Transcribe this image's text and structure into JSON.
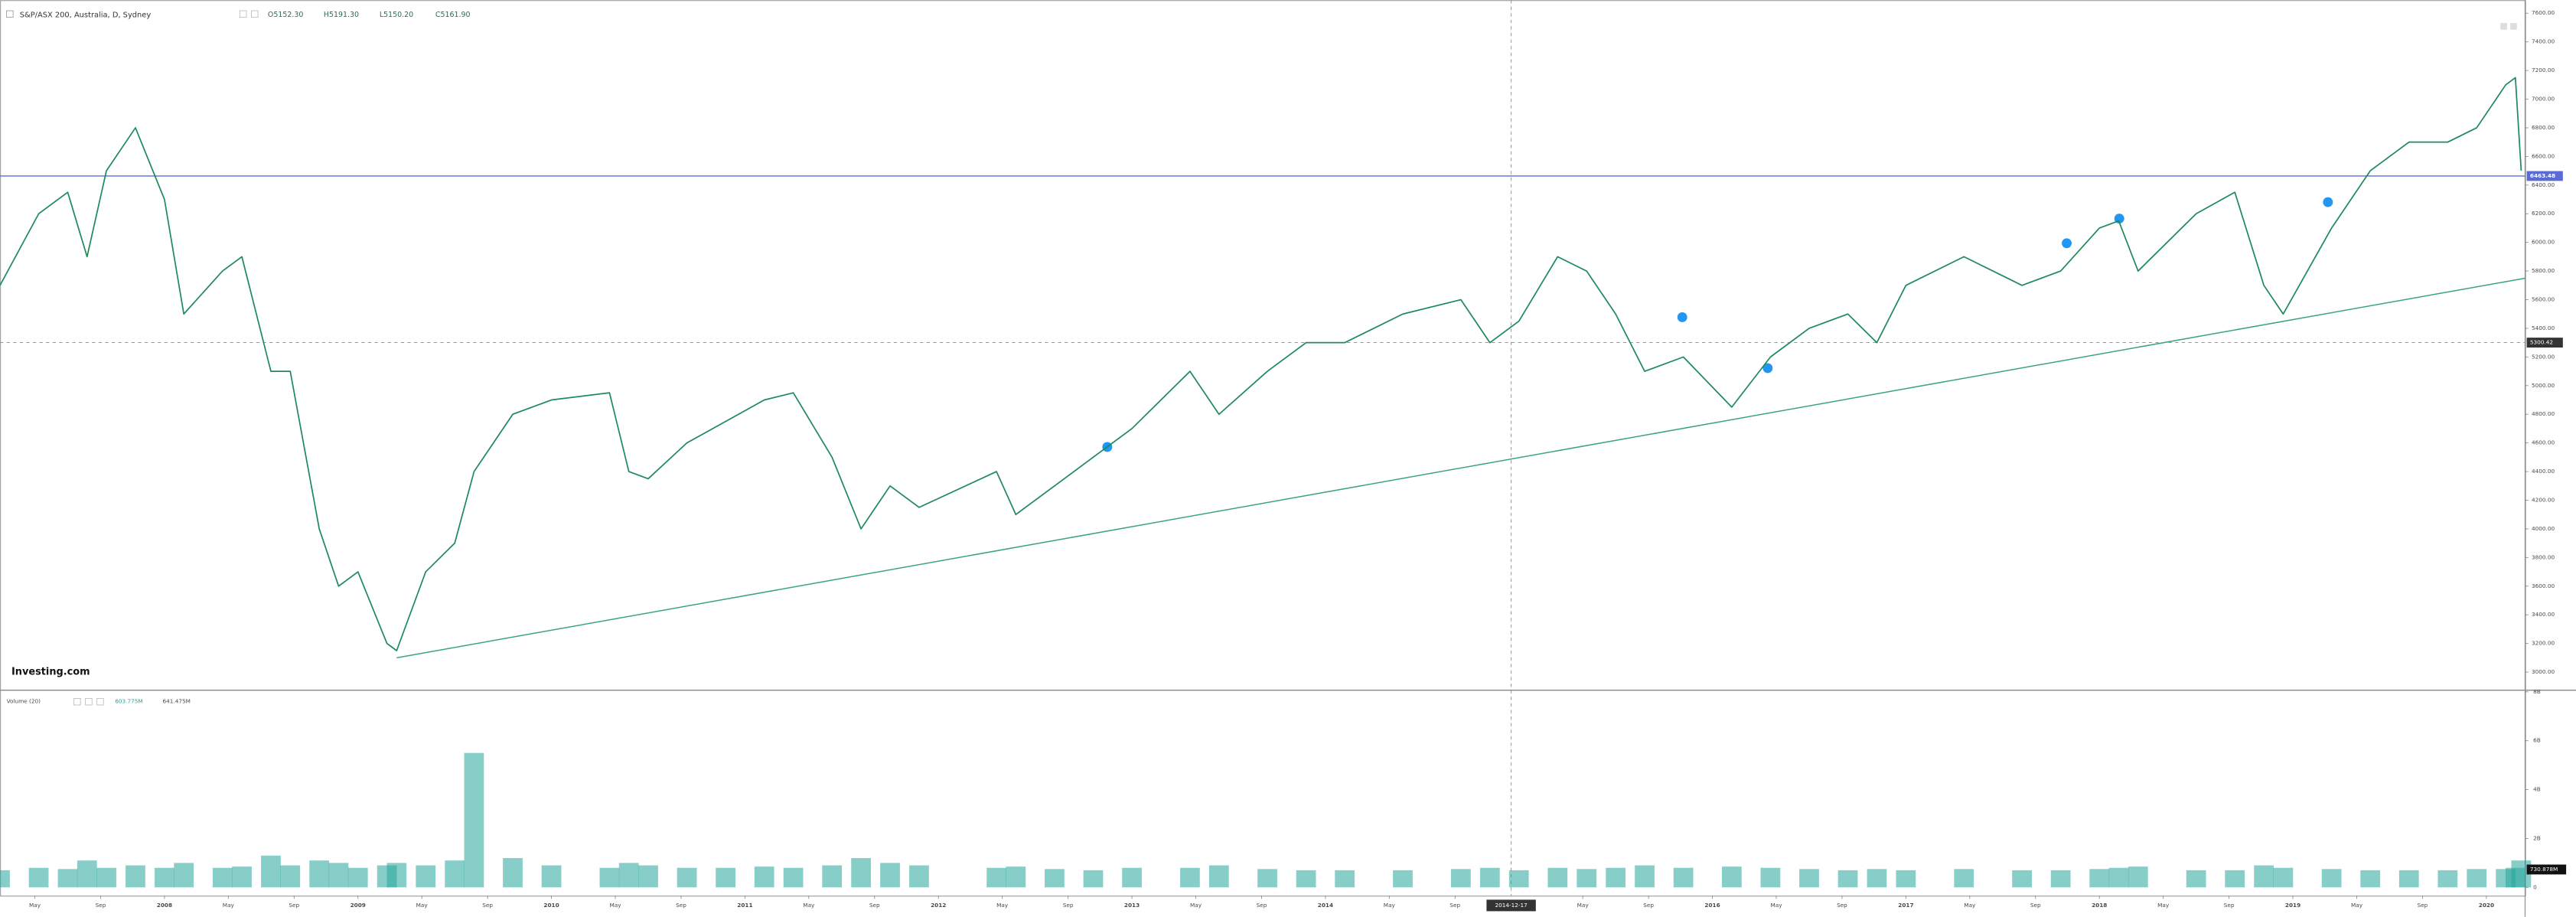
{
  "header": {
    "symbol": "S&P/ASX 200, Australia, D, Sydney",
    "open": "O5152.30",
    "high": "H5191.30",
    "low": "L5150.20",
    "close": "C5161.90"
  },
  "logo": "Investing.com",
  "volume_header": {
    "title": "Volume (20)",
    "value": "603.775M",
    "ma": "641.475M"
  },
  "chart_data": [
    {
      "type": "line",
      "color": "#1f8a5c",
      "x": [
        2007.15,
        2007.35,
        2007.5,
        2007.6,
        2007.7,
        2007.85,
        2008.0,
        2008.1,
        2008.3,
        2008.4,
        2008.55,
        2008.65,
        2008.8,
        2008.9,
        2009.0,
        2009.15,
        2009.2,
        2009.35,
        2009.5,
        2009.6,
        2009.8,
        2010.0,
        2010.3,
        2010.4,
        2010.5,
        2010.7,
        2010.9,
        2011.1,
        2011.25,
        2011.45,
        2011.6,
        2011.75,
        2011.9,
        2012.3,
        2012.4,
        2012.6,
        2012.8,
        2013.0,
        2013.3,
        2013.45,
        2013.7,
        2013.9,
        2014.1,
        2014.4,
        2014.7,
        2014.85,
        2015.0,
        2015.2,
        2015.35,
        2015.5,
        2015.65,
        2015.85,
        2016.1,
        2016.3,
        2016.5,
        2016.7,
        2016.85,
        2017.0,
        2017.3,
        2017.6,
        2017.8,
        2018.0,
        2018.1,
        2018.2,
        2018.5,
        2018.7,
        2018.85,
        2018.95,
        2019.2,
        2019.4,
        2019.6,
        2019.8,
        2019.95,
        2020.1,
        2020.15,
        2020.18
      ],
      "values": [
        5700,
        6200,
        6350,
        5900,
        6500,
        6800,
        6300,
        5500,
        5800,
        5900,
        5100,
        5100,
        4000,
        3600,
        3700,
        3200,
        3150,
        3700,
        3900,
        4400,
        4800,
        4900,
        4950,
        4400,
        4350,
        4600,
        4750,
        4900,
        4950,
        4500,
        4000,
        4300,
        4150,
        4400,
        4100,
        4300,
        4500,
        4700,
        5100,
        4800,
        5100,
        5300,
        5300,
        5500,
        5600,
        5300,
        5450,
        5900,
        5800,
        5500,
        5100,
        5200,
        4850,
        5200,
        5400,
        5500,
        5300,
        5700,
        5900,
        5700,
        5800,
        6100,
        6150,
        5800,
        6200,
        6350,
        5700,
        5500,
        6100,
        6500,
        6700,
        6700,
        6800,
        7100,
        7150,
        6500
      ],
      "xlim": [
        2007.15,
        2020.2
      ],
      "ylim": [
        3000,
        7600
      ],
      "yticks": [
        {
          "value": 3000,
          "label": "3000.00"
        },
        {
          "value": 3200,
          "label": "3200.00"
        },
        {
          "value": 3400,
          "label": "3400.00"
        },
        {
          "value": 3600,
          "label": "3600.00"
        },
        {
          "value": 3800,
          "label": "3800.00"
        },
        {
          "value": 4000,
          "label": "4000.00"
        },
        {
          "value": 4200,
          "label": "4200.00"
        },
        {
          "value": 4400,
          "label": "4400.00"
        },
        {
          "value": 4600,
          "label": "4600.00"
        },
        {
          "value": 4800,
          "label": "4800.00"
        },
        {
          "value": 5000,
          "label": "5000.00"
        },
        {
          "value": 5200,
          "label": "5200.00"
        },
        {
          "value": 5400,
          "label": "5400.00"
        },
        {
          "value": 5600,
          "label": "5600.00"
        },
        {
          "value": 5800,
          "label": "5800.00"
        },
        {
          "value": 6000,
          "label": "6000.00"
        },
        {
          "value": 6200,
          "label": "6200.00"
        },
        {
          "value": 6400,
          "label": "6400.00"
        },
        {
          "value": 6600,
          "label": "6600.00"
        },
        {
          "value": 6800,
          "label": "6800.00"
        },
        {
          "value": 7000,
          "label": "7000.00"
        },
        {
          "value": 7200,
          "label": "7200.00"
        },
        {
          "value": 7400,
          "label": "7400.00"
        },
        {
          "value": 7600,
          "label": "7600.00"
        }
      ],
      "xticks": [
        {
          "value": 2007.33,
          "label": "May"
        },
        {
          "value": 2007.67,
          "label": "Sep"
        },
        2008,
        {
          "value": 2008.33,
          "label": "May"
        },
        {
          "value": 2008.67,
          "label": "Sep"
        },
        2009,
        {
          "value": 2009.33,
          "label": "May"
        },
        {
          "value": 2009.67,
          "label": "Sep"
        },
        2010,
        {
          "value": 2010.33,
          "label": "May"
        },
        {
          "value": 2010.67,
          "label": "Sep"
        },
        2011,
        {
          "value": 2011.33,
          "label": "May"
        },
        {
          "value": 2011.67,
          "label": "Sep"
        },
        2012,
        {
          "value": 2012.33,
          "label": "May"
        },
        {
          "value": 2012.67,
          "label": "Sep"
        },
        2013,
        {
          "value": 2013.33,
          "label": "May"
        },
        {
          "value": 2013.67,
          "label": "Sep"
        },
        2014,
        {
          "value": 2014.33,
          "label": "May"
        },
        {
          "value": 2014.67,
          "label": "Sep"
        },
        {
          "value": 2015.33,
          "label": "May"
        },
        {
          "value": 2015.67,
          "label": "Sep"
        },
        2016,
        {
          "value": 2016.33,
          "label": "May"
        },
        {
          "value": 2016.67,
          "label": "Sep"
        },
        2017,
        {
          "value": 2017.33,
          "label": "May"
        },
        {
          "value": 2017.67,
          "label": "Sep"
        },
        2018,
        {
          "value": 2018.33,
          "label": "May"
        },
        {
          "value": 2018.67,
          "label": "Sep"
        },
        2019,
        {
          "value": 2019.33,
          "label": "May"
        },
        {
          "value": 2019.67,
          "label": "Sep"
        },
        2020
      ],
      "hline": {
        "value": 6463.48,
        "label": "6463.48",
        "color": "#5b6bd6"
      },
      "crosshair": {
        "y": {
          "value": 5300.42,
          "label": "5300.42"
        },
        "x": {
          "value": 2014.96,
          "label": "2014-12-17"
        }
      },
      "trendline": {
        "x": [
          2009.2,
          2020.2
        ],
        "values": [
          3100,
          5750
        ],
        "color": "#3aa57a"
      }
    },
    {
      "type": "bar",
      "color": "#26a69a",
      "values": [
        700000000.0,
        800000000.0,
        750000000.0,
        1100000000.0,
        800000000.0,
        900000000.0,
        800000000.0,
        1000000000.0,
        800000000.0,
        850000000.0,
        1300000000.0,
        900000000.0,
        1100000000.0,
        1000000000.0,
        800000000.0,
        900000000.0,
        1000000000.0,
        900000000.0,
        1100000000.0,
        5500000000.0,
        1200000000.0,
        900000000.0,
        800000000.0,
        1000000000.0,
        900000000.0,
        800000000.0,
        800000000.0,
        850000000.0,
        800000000.0,
        900000000.0,
        1200000000.0,
        1000000000.0,
        900000000.0,
        800000000.0,
        850000000.0,
        750000000.0,
        700000000.0,
        800000000.0,
        800000000.0,
        900000000.0,
        750000000.0,
        700000000.0,
        700000000.0,
        700000000.0,
        750000000.0,
        800000000.0,
        700000000.0,
        800000000.0,
        750000000.0,
        800000000.0,
        900000000.0,
        800000000.0,
        850000000.0,
        800000000.0,
        750000000.0,
        700000000.0,
        750000000.0,
        700000000.0,
        750000000.0,
        700000000.0,
        700000000.0,
        750000000.0,
        800000000.0,
        850000000.0,
        700000000.0,
        700000000.0,
        900000000.0,
        800000000.0,
        750000000.0,
        700000000.0,
        700000000.0,
        700000000.0,
        750000000.0,
        750000000.0,
        800000000.0,
        1100000000.0
      ],
      "ylim": [
        0,
        8000000000.0
      ],
      "yticks": [
        0,
        {
          "value": 2000000000.0,
          "label": "2B"
        },
        {
          "value": 4000000000.0,
          "label": "4B"
        },
        {
          "value": 6000000000.0,
          "label": "6B"
        },
        {
          "value": 8000000000.0,
          "label": "8B"
        }
      ],
      "last": {
        "value": 730878000,
        "label": "730.878M"
      }
    }
  ]
}
